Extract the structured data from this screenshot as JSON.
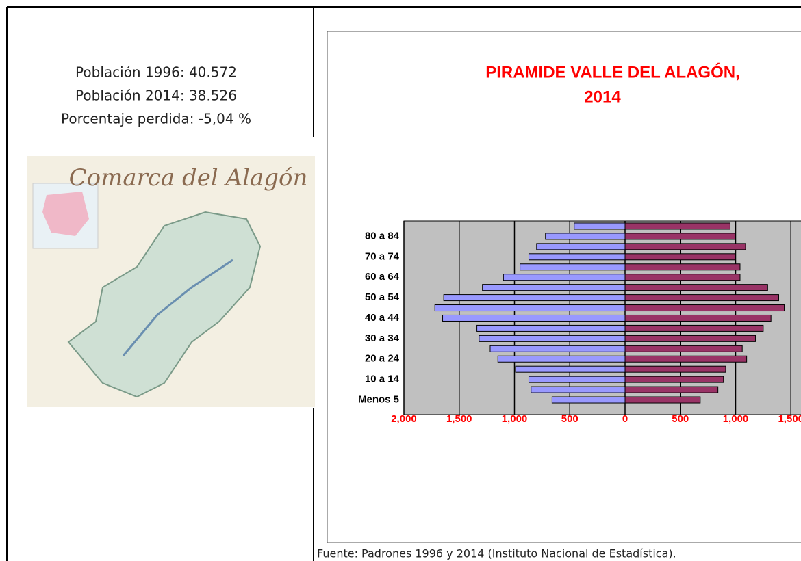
{
  "left": {
    "lines": [
      "Población 1996: 40.572",
      "Población 2014: 38.526",
      "Porcentaje perdida: -5,04 %"
    ],
    "map_title": "Comarca del Alagón"
  },
  "chart_data": {
    "type": "pyramid",
    "title": [
      "PIRAMIDE VALLE DEL ALAGÓN,",
      "2014"
    ],
    "categories": [
      "Menos 5",
      null,
      "10 a 14",
      null,
      "20 a 24",
      null,
      "30 a 34",
      null,
      "40 a 44",
      null,
      "50 a 54",
      null,
      "60 a 64",
      null,
      "70 a 74",
      null,
      "80 a 84",
      null
    ],
    "series": [
      {
        "color": "#9999ff",
        "values": [
          -660,
          -850,
          -870,
          -990,
          -1150,
          -1220,
          -1320,
          -1340,
          -1650,
          -1720,
          -1640,
          -1290,
          -1100,
          -950,
          -870,
          -800,
          -720,
          -460
        ]
      },
      {
        "color": "#993366",
        "values": [
          680,
          840,
          890,
          910,
          1100,
          1060,
          1180,
          1250,
          1320,
          1440,
          1390,
          1290,
          1040,
          1040,
          1000,
          1090,
          1000,
          950
        ]
      }
    ],
    "xlim": [
      -2000,
      2000
    ],
    "xticks": [
      {
        "value": -2000,
        "label": "2,000"
      },
      {
        "value": -1500,
        "label": "1,500"
      },
      {
        "value": -1000,
        "label": "1,000"
      },
      {
        "value": -500,
        "label": "500"
      },
      0,
      500,
      {
        "value": 1000,
        "label": "1,000"
      },
      {
        "value": 1500,
        "label": "1,500"
      }
    ],
    "grid": true
  },
  "footnote": "Fuente: Padrones 1996 y 2014 (Instituto Nacional de Estadística)."
}
